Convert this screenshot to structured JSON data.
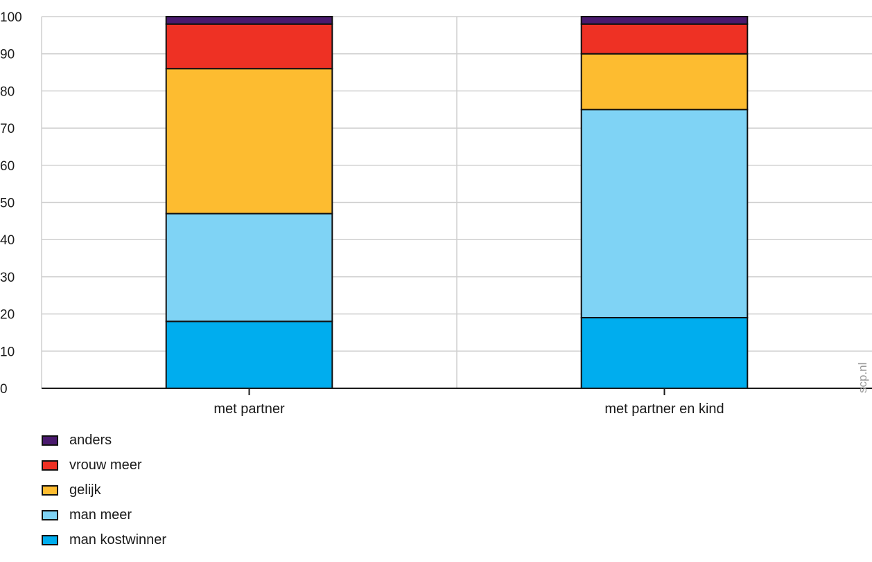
{
  "chart_data": {
    "type": "bar",
    "stacked": true,
    "categories": [
      "met partner",
      "met partner en kind"
    ],
    "series": [
      {
        "name": "man kostwinner",
        "color": "#00ADEE",
        "values": [
          18,
          19
        ]
      },
      {
        "name": "man meer",
        "color": "#7FD3F5",
        "values": [
          29,
          56
        ]
      },
      {
        "name": "gelijk",
        "color": "#FDBC30",
        "values": [
          39,
          15
        ]
      },
      {
        "name": "vrouw meer",
        "color": "#EE3124",
        "values": [
          12,
          8
        ]
      },
      {
        "name": "anders",
        "color": "#4A1A6E",
        "values": [
          2,
          2
        ]
      }
    ],
    "ylim": [
      0,
      100
    ],
    "yticks": [
      "0",
      "10",
      "20",
      "30",
      "40",
      "50",
      "60",
      "70",
      "80",
      "90",
      "100"
    ],
    "grid": true,
    "legend_position": "bottom-left",
    "legend_order": [
      "anders",
      "vrouw meer",
      "gelijk",
      "man meer",
      "man kostwinner"
    ]
  },
  "watermark": "scp.nl"
}
